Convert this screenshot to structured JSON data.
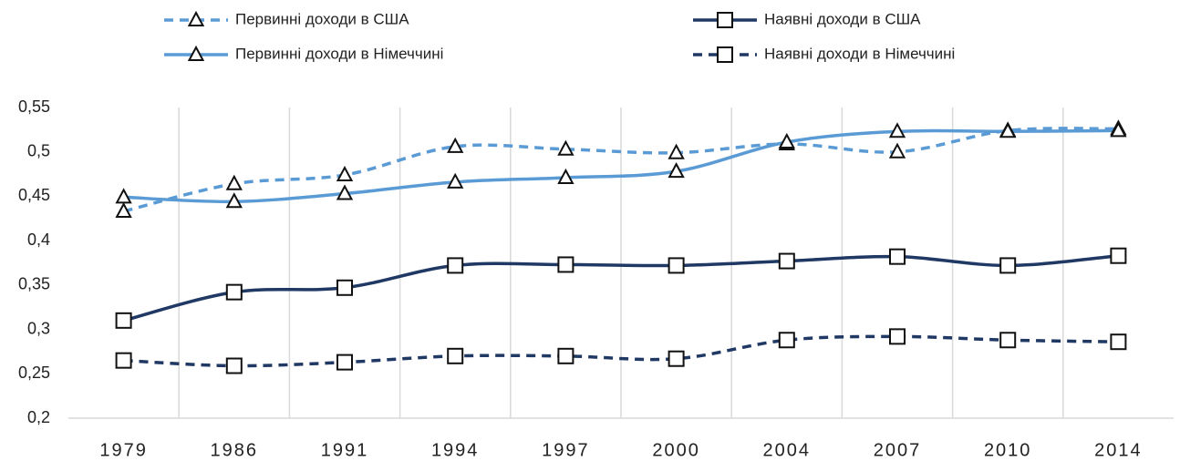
{
  "chart_data": {
    "type": "line",
    "categories": [
      "1979",
      "1986",
      "1991",
      "1994",
      "1997",
      "2000",
      "2004",
      "2007",
      "2010",
      "2014"
    ],
    "series": [
      {
        "name": "Первинні доходи в США",
        "color": "#5b9bd5",
        "dash": true,
        "marker": "triangle",
        "values": [
          0.433,
          0.464,
          0.474,
          0.506,
          0.503,
          0.499,
          0.509,
          0.5,
          0.524,
          0.526
        ]
      },
      {
        "name": "Наявні доходи в США",
        "color": "#203864",
        "dash": false,
        "marker": "square",
        "values": [
          0.31,
          0.342,
          0.347,
          0.372,
          0.373,
          0.372,
          0.377,
          0.382,
          0.372,
          0.383
        ]
      },
      {
        "name": "Первинні доходи в Німеччині",
        "color": "#5b9bd5",
        "dash": false,
        "marker": "triangle",
        "values": [
          0.449,
          0.444,
          0.453,
          0.466,
          0.471,
          0.478,
          0.511,
          0.523,
          0.523,
          0.524
        ]
      },
      {
        "name": "Наявні доходи в Німеччині",
        "color": "#203864",
        "dash": true,
        "marker": "square",
        "values": [
          0.265,
          0.259,
          0.263,
          0.27,
          0.27,
          0.267,
          0.288,
          0.292,
          0.288,
          0.286
        ]
      }
    ],
    "ylim": [
      0.2,
      0.55
    ],
    "yticks": [
      {
        "value": 0.2,
        "label": "0,2"
      },
      {
        "value": 0.25,
        "label": "0,25"
      },
      {
        "value": 0.3,
        "label": "0,3"
      },
      {
        "value": 0.35,
        "label": "0,35"
      },
      {
        "value": 0.4,
        "label": "0,4"
      },
      {
        "value": 0.45,
        "label": "0,45"
      },
      {
        "value": 0.5,
        "label": "0,5"
      },
      {
        "value": 0.55,
        "label": "0,55"
      }
    ],
    "smooth": true,
    "vertical_grid": true,
    "legend": "top"
  }
}
